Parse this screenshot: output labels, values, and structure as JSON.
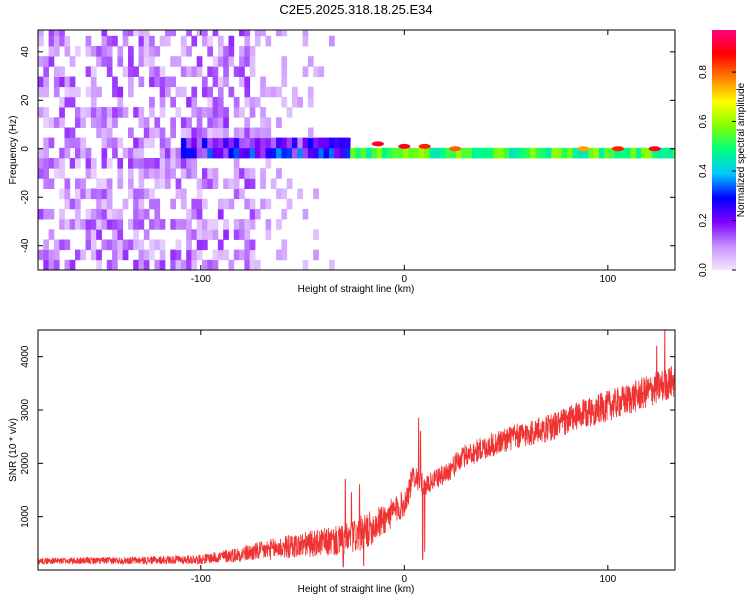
{
  "figure_title": "C2E5.2025.318.18.25.E34",
  "chart_data": [
    {
      "type": "heatmap",
      "title": "C2E5.2025.318.18.25.E34",
      "xlabel": "Height of straight line (km)",
      "ylabel": "Frequency (Hz)",
      "xlim": [
        -180,
        133
      ],
      "ylim": [
        -50,
        49
      ],
      "xticks": [
        -100,
        0,
        100
      ],
      "xtick_labels": [
        "-100",
        "0",
        "100"
      ],
      "yticks": [
        -40,
        -20,
        0,
        20,
        40
      ],
      "ytick_labels": [
        "-40",
        "-20",
        "0",
        "20",
        "40"
      ],
      "colorbar": {
        "label": "Normalized spectral amplitude",
        "range": [
          0.0,
          0.97
        ],
        "ticks": [
          0.0,
          0.2,
          0.4,
          0.6,
          0.8
        ],
        "tick_labels": [
          "0.0",
          "0.2",
          "0.4",
          "0.6",
          "0.8"
        ],
        "colormap": [
          "#f4e6ff",
          "#c890ff",
          "#7f00ff",
          "#0000ff",
          "#00c8ff",
          "#00ff80",
          "#80ff00",
          "#ffff00",
          "#ff8000",
          "#ff0000",
          "#ff0080"
        ]
      },
      "features": {
        "noise_region_x": [
          -180,
          -75
        ],
        "noise_amplitude": 0.12,
        "faint_region_x": [
          -75,
          -30
        ],
        "burst_region_x": [
          -112,
          -28
        ],
        "burst_frequency_halfwidth": 6,
        "burst_peak_amplitude": 0.35,
        "narrow_line_x": [
          -28,
          133
        ],
        "narrow_line_frequency": 0,
        "narrow_line_amplitude": 0.55,
        "hot_spots": [
          {
            "x": -13,
            "f": 2,
            "amplitude": 0.9
          },
          {
            "x": 0,
            "f": 1,
            "amplitude": 0.9
          },
          {
            "x": 10,
            "f": 1,
            "amplitude": 0.85
          },
          {
            "x": 25,
            "f": 0,
            "amplitude": 0.8
          },
          {
            "x": 88,
            "f": 0,
            "amplitude": 0.75
          },
          {
            "x": 105,
            "f": 0,
            "amplitude": 0.85
          },
          {
            "x": 123,
            "f": 0,
            "amplitude": 0.9
          }
        ]
      }
    },
    {
      "type": "line",
      "xlabel": "Height of straight line (km)",
      "ylabel": "SNR (10 * v/v)",
      "xlim": [
        -180,
        133
      ],
      "ylim": [
        0,
        4500
      ],
      "xticks": [
        -100,
        0,
        100
      ],
      "xtick_labels": [
        "-100",
        "0",
        "100"
      ],
      "yticks": [
        1000,
        2000,
        3000,
        4000
      ],
      "ytick_labels": [
        "1000",
        "2000",
        "3000",
        "4000"
      ],
      "series": [
        {
          "name": "SNR",
          "color": "#f03232",
          "trend_x": [
            -180,
            -130,
            -100,
            -80,
            -60,
            -40,
            -30,
            -20,
            -10,
            0,
            5,
            10,
            15,
            20,
            30,
            50,
            70,
            90,
            110,
            133
          ],
          "trend_y": [
            170,
            180,
            200,
            300,
            420,
            520,
            550,
            700,
            950,
            1250,
            1800,
            1550,
            1700,
            1800,
            2150,
            2450,
            2650,
            2950,
            3200,
            3550
          ],
          "noise_amplitude": [
            60,
            70,
            90,
            150,
            220,
            260,
            300,
            340,
            300,
            260,
            250,
            200,
            180,
            200,
            220,
            240,
            260,
            280,
            300,
            320
          ],
          "spikes": [
            {
              "x": -29,
              "y": 1700
            },
            {
              "x": -26,
              "y": 1450
            },
            {
              "x": -22,
              "y": 1600
            },
            {
              "x": 7,
              "y": 2850
            },
            {
              "x": 8,
              "y": 2600
            },
            {
              "x": 128,
              "y": 4550
            },
            {
              "x": 124,
              "y": 4200
            }
          ],
          "dips": [
            {
              "x": -30,
              "y": 60
            },
            {
              "x": -20,
              "y": 80
            },
            {
              "x": 9,
              "y": 200
            },
            {
              "x": 10,
              "y": 350
            }
          ]
        }
      ]
    }
  ]
}
